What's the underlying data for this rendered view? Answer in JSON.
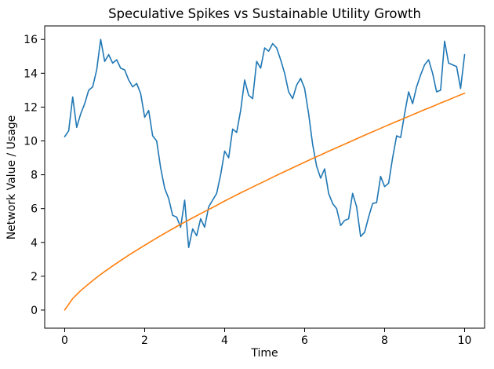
{
  "figure": {
    "title": "Speculative Spikes vs Sustainable Utility Growth",
    "xlabel": "Time",
    "ylabel": "Network Value / Usage"
  },
  "colors": {
    "speculative_line": "#1f77b4",
    "sustainable_line": "#ff7f0e",
    "axis": "#000000",
    "background": "#ffffff"
  },
  "chart_data": {
    "type": "line",
    "title": "Speculative Spikes vs Sustainable Utility Growth",
    "xlabel": "Time",
    "ylabel": "Network Value / Usage",
    "xlim": [
      -0.5,
      10.5
    ],
    "ylim": [
      -1.07,
      16.8
    ],
    "x_ticks": [
      0,
      2,
      4,
      6,
      8,
      10
    ],
    "y_ticks": [
      0,
      2,
      4,
      6,
      8,
      10,
      12,
      14,
      16
    ],
    "grid": false,
    "legend": "none",
    "series": [
      {
        "name": "speculative-spikes",
        "color": "#1f77b4",
        "x": [
          0.0,
          0.1,
          0.2,
          0.3,
          0.4,
          0.5,
          0.6,
          0.7,
          0.8,
          0.9,
          1.0,
          1.1,
          1.2,
          1.3,
          1.4,
          1.5,
          1.6,
          1.7,
          1.8,
          1.9,
          2.0,
          2.1,
          2.2,
          2.3,
          2.4,
          2.5,
          2.6,
          2.7,
          2.8,
          2.9,
          3.0,
          3.1,
          3.2,
          3.3,
          3.4,
          3.5,
          3.6,
          3.7,
          3.8,
          3.9,
          4.0,
          4.1,
          4.2,
          4.3,
          4.4,
          4.5,
          4.6,
          4.7,
          4.8,
          4.9,
          5.0,
          5.1,
          5.2,
          5.3,
          5.4,
          5.5,
          5.6,
          5.7,
          5.8,
          5.9,
          6.0,
          6.1,
          6.2,
          6.3,
          6.4,
          6.5,
          6.6,
          6.7,
          6.8,
          6.9,
          7.0,
          7.1,
          7.2,
          7.3,
          7.4,
          7.5,
          7.6,
          7.7,
          7.8,
          7.9,
          8.0,
          8.1,
          8.2,
          8.3,
          8.4,
          8.5,
          8.6,
          8.7,
          8.8,
          8.9,
          9.0,
          9.1,
          9.2,
          9.3,
          9.4,
          9.5,
          9.6,
          9.7,
          9.8,
          9.9,
          10.0
        ],
        "values": [
          10.25,
          10.6,
          12.6,
          10.8,
          11.6,
          12.2,
          13.0,
          13.2,
          14.2,
          16.0,
          14.7,
          15.1,
          14.6,
          14.8,
          14.3,
          14.2,
          13.6,
          13.2,
          13.4,
          12.8,
          11.4,
          11.8,
          10.3,
          10.0,
          8.4,
          7.2,
          6.6,
          5.6,
          5.5,
          4.9,
          6.5,
          3.7,
          4.8,
          4.4,
          5.4,
          4.9,
          6.1,
          6.5,
          6.9,
          8.0,
          9.4,
          9.0,
          10.7,
          10.5,
          11.8,
          13.6,
          12.7,
          12.5,
          14.7,
          14.3,
          15.5,
          15.3,
          15.75,
          15.5,
          14.8,
          14.0,
          12.9,
          12.5,
          13.3,
          13.7,
          13.1,
          11.6,
          9.8,
          8.5,
          7.8,
          8.35,
          6.9,
          6.3,
          6.0,
          5.0,
          5.3,
          5.4,
          6.9,
          6.1,
          4.35,
          4.6,
          5.5,
          6.3,
          6.35,
          7.9,
          7.3,
          7.5,
          9.0,
          10.3,
          10.2,
          11.6,
          12.9,
          12.2,
          13.2,
          13.9,
          14.5,
          14.8,
          14.0,
          12.9,
          13.0,
          15.9,
          14.6,
          14.5,
          14.4,
          13.1,
          15.1
        ]
      },
      {
        "name": "sustainable-utility-growth",
        "color": "#ff7f0e",
        "x": [
          0.0,
          0.2,
          0.4,
          0.6,
          0.8,
          1.0,
          1.2,
          1.4,
          1.6,
          1.8,
          2.0,
          2.2,
          2.4,
          2.6,
          2.8,
          3.0,
          3.2,
          3.4,
          3.6,
          3.8,
          4.0,
          4.2,
          4.4,
          4.6,
          4.8,
          5.0,
          5.2,
          5.4,
          5.6,
          5.8,
          6.0,
          6.2,
          6.4,
          6.6,
          6.8,
          7.0,
          7.2,
          7.4,
          7.6,
          7.8,
          8.0,
          8.2,
          8.4,
          8.6,
          8.8,
          9.0,
          9.2,
          9.4,
          9.6,
          9.8,
          10.0
        ],
        "values": [
          0.0,
          0.68,
          1.15,
          1.55,
          1.93,
          2.28,
          2.61,
          2.93,
          3.24,
          3.54,
          3.83,
          4.12,
          4.4,
          4.67,
          4.94,
          5.2,
          5.45,
          5.7,
          5.95,
          6.19,
          6.45,
          6.69,
          6.93,
          7.16,
          7.39,
          7.62,
          7.85,
          8.08,
          8.3,
          8.52,
          8.74,
          8.96,
          9.17,
          9.39,
          9.6,
          9.81,
          10.02,
          10.23,
          10.44,
          10.64,
          10.85,
          11.05,
          11.25,
          11.45,
          11.65,
          11.85,
          12.04,
          12.24,
          12.43,
          12.63,
          12.82
        ]
      }
    ]
  }
}
